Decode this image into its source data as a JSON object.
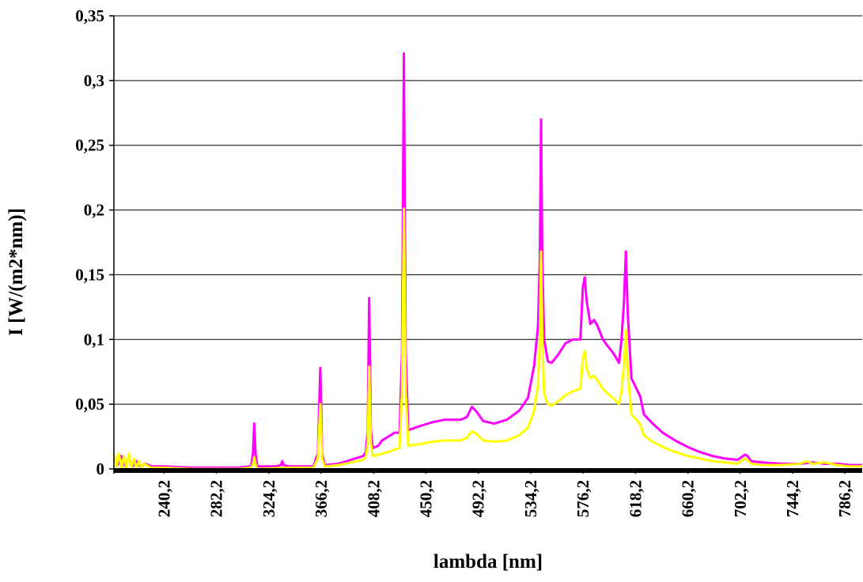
{
  "chart_data": {
    "type": "line",
    "title": "",
    "xlabel": "lambda [nm]",
    "ylabel": "I [W/(m2*nm)]",
    "xlim": [
      200,
      800
    ],
    "ylim": [
      0,
      0.35
    ],
    "yticks": [
      "0",
      "0,05",
      "0,1",
      "0,15",
      "0,2",
      "0,25",
      "0,3",
      "0,35"
    ],
    "ytick_values": [
      0,
      0.05,
      0.1,
      0.15,
      0.2,
      0.25,
      0.3,
      0.35
    ],
    "xticks": [
      "240,2",
      "282,2",
      "324,2",
      "366,2",
      "408,2",
      "450,2",
      "492,2",
      "534,2",
      "576,2",
      "618,2",
      "660,2",
      "702,2",
      "744,2",
      "786,2"
    ],
    "xtick_values": [
      240.2,
      282.2,
      324.2,
      366.2,
      408.2,
      450.2,
      492.2,
      534.2,
      576.2,
      618.2,
      660.2,
      702.2,
      744.2,
      786.2
    ],
    "grid": "horizontal",
    "series": [
      {
        "color": "#ff00ff",
        "points": [
          [
            200,
            0.008
          ],
          [
            203,
            0.003
          ],
          [
            206,
            0.01
          ],
          [
            209,
            0.002
          ],
          [
            212,
            0.008
          ],
          [
            215,
            0.002
          ],
          [
            218,
            0.006
          ],
          [
            221,
            0.002
          ],
          [
            225,
            0.004
          ],
          [
            230,
            0.002
          ],
          [
            240,
            0.002
          ],
          [
            260,
            0.001
          ],
          [
            280,
            0.001
          ],
          [
            300,
            0.001
          ],
          [
            310,
            0.002
          ],
          [
            311.5,
            0.012
          ],
          [
            312.5,
            0.035
          ],
          [
            313.5,
            0.012
          ],
          [
            315,
            0.002
          ],
          [
            330,
            0.002
          ],
          [
            334,
            0.003
          ],
          [
            335,
            0.006
          ],
          [
            336,
            0.003
          ],
          [
            340,
            0.002
          ],
          [
            360,
            0.002
          ],
          [
            363.5,
            0.012
          ],
          [
            365.5,
            0.078
          ],
          [
            367,
            0.012
          ],
          [
            369,
            0.003
          ],
          [
            380,
            0.004
          ],
          [
            390,
            0.007
          ],
          [
            400,
            0.01
          ],
          [
            402,
            0.013
          ],
          [
            403.5,
            0.03
          ],
          [
            404.7,
            0.132
          ],
          [
            406,
            0.03
          ],
          [
            407.5,
            0.016
          ],
          [
            412,
            0.018
          ],
          [
            415,
            0.022
          ],
          [
            420,
            0.025
          ],
          [
            425,
            0.028
          ],
          [
            429,
            0.028
          ],
          [
            431,
            0.09
          ],
          [
            432.5,
            0.321
          ],
          [
            434,
            0.09
          ],
          [
            436,
            0.03
          ],
          [
            445,
            0.033
          ],
          [
            455,
            0.036
          ],
          [
            465,
            0.038
          ],
          [
            478,
            0.038
          ],
          [
            483,
            0.04
          ],
          [
            487,
            0.048
          ],
          [
            491,
            0.044
          ],
          [
            496,
            0.037
          ],
          [
            505,
            0.035
          ],
          [
            515,
            0.038
          ],
          [
            525,
            0.045
          ],
          [
            532,
            0.055
          ],
          [
            537,
            0.08
          ],
          [
            540,
            0.11
          ],
          [
            541.5,
            0.16
          ],
          [
            542.5,
            0.27
          ],
          [
            543.5,
            0.16
          ],
          [
            545,
            0.1
          ],
          [
            548,
            0.083
          ],
          [
            551,
            0.082
          ],
          [
            556,
            0.088
          ],
          [
            562,
            0.097
          ],
          [
            568,
            0.1
          ],
          [
            574,
            0.1
          ],
          [
            576,
            0.14
          ],
          [
            577.5,
            0.148
          ],
          [
            579,
            0.13
          ],
          [
            582,
            0.112
          ],
          [
            585,
            0.115
          ],
          [
            588,
            0.11
          ],
          [
            592,
            0.1
          ],
          [
            595,
            0.096
          ],
          [
            600,
            0.09
          ],
          [
            605,
            0.082
          ],
          [
            607,
            0.1
          ],
          [
            609,
            0.13
          ],
          [
            610.5,
            0.168
          ],
          [
            612,
            0.12
          ],
          [
            615,
            0.07
          ],
          [
            620,
            0.06
          ],
          [
            622,
            0.056
          ],
          [
            625,
            0.042
          ],
          [
            632,
            0.035
          ],
          [
            640,
            0.028
          ],
          [
            650,
            0.022
          ],
          [
            660,
            0.017
          ],
          [
            670,
            0.013
          ],
          [
            680,
            0.01
          ],
          [
            690,
            0.008
          ],
          [
            700,
            0.007
          ],
          [
            706,
            0.011
          ],
          [
            708,
            0.01
          ],
          [
            711,
            0.006
          ],
          [
            720,
            0.005
          ],
          [
            735,
            0.004
          ],
          [
            750,
            0.004
          ],
          [
            760,
            0.005
          ],
          [
            770,
            0.004
          ],
          [
            780,
            0.004
          ],
          [
            790,
            0.003
          ],
          [
            800,
            0.003
          ]
        ]
      },
      {
        "color": "#ffff00",
        "points": [
          [
            200,
            0.012
          ],
          [
            202,
            0.002
          ],
          [
            204,
            0.012
          ],
          [
            206,
            0.0
          ],
          [
            208,
            0.01
          ],
          [
            210,
            0.0
          ],
          [
            212,
            0.012
          ],
          [
            214,
            0.001
          ],
          [
            216,
            0.008
          ],
          [
            218,
            0.001
          ],
          [
            220,
            0.006
          ],
          [
            222,
            0.001
          ],
          [
            224,
            0.004
          ],
          [
            230,
            0.001
          ],
          [
            240,
            0.001
          ],
          [
            260,
            0.0
          ],
          [
            280,
            0.0
          ],
          [
            300,
            0.0
          ],
          [
            310,
            0.001
          ],
          [
            311.5,
            0.004
          ],
          [
            312.5,
            0.009
          ],
          [
            313.5,
            0.004
          ],
          [
            315,
            0.0
          ],
          [
            340,
            0.001
          ],
          [
            360,
            0.001
          ],
          [
            363.5,
            0.008
          ],
          [
            365.5,
            0.05
          ],
          [
            367,
            0.008
          ],
          [
            369,
            0.002
          ],
          [
            380,
            0.003
          ],
          [
            390,
            0.005
          ],
          [
            400,
            0.007
          ],
          [
            402,
            0.009
          ],
          [
            403.5,
            0.02
          ],
          [
            404.7,
            0.079
          ],
          [
            406,
            0.02
          ],
          [
            407.5,
            0.01
          ],
          [
            412,
            0.011
          ],
          [
            420,
            0.013
          ],
          [
            425,
            0.015
          ],
          [
            429,
            0.016
          ],
          [
            431,
            0.06
          ],
          [
            432.5,
            0.201
          ],
          [
            434,
            0.06
          ],
          [
            436,
            0.018
          ],
          [
            445,
            0.019
          ],
          [
            455,
            0.021
          ],
          [
            465,
            0.022
          ],
          [
            478,
            0.022
          ],
          [
            483,
            0.024
          ],
          [
            487,
            0.029
          ],
          [
            491,
            0.027
          ],
          [
            496,
            0.022
          ],
          [
            505,
            0.021
          ],
          [
            515,
            0.022
          ],
          [
            525,
            0.026
          ],
          [
            532,
            0.032
          ],
          [
            537,
            0.045
          ],
          [
            540,
            0.065
          ],
          [
            541.5,
            0.1
          ],
          [
            542.5,
            0.168
          ],
          [
            543.5,
            0.1
          ],
          [
            545,
            0.058
          ],
          [
            548,
            0.05
          ],
          [
            551,
            0.049
          ],
          [
            556,
            0.052
          ],
          [
            562,
            0.057
          ],
          [
            568,
            0.06
          ],
          [
            574,
            0.062
          ],
          [
            576,
            0.085
          ],
          [
            577.5,
            0.091
          ],
          [
            579,
            0.078
          ],
          [
            582,
            0.07
          ],
          [
            585,
            0.072
          ],
          [
            588,
            0.068
          ],
          [
            592,
            0.062
          ],
          [
            595,
            0.059
          ],
          [
            600,
            0.055
          ],
          [
            605,
            0.05
          ],
          [
            607,
            0.06
          ],
          [
            609,
            0.08
          ],
          [
            610.5,
            0.107
          ],
          [
            612,
            0.075
          ],
          [
            615,
            0.042
          ],
          [
            620,
            0.037
          ],
          [
            622,
            0.034
          ],
          [
            625,
            0.026
          ],
          [
            632,
            0.021
          ],
          [
            640,
            0.017
          ],
          [
            650,
            0.013
          ],
          [
            660,
            0.01
          ],
          [
            670,
            0.008
          ],
          [
            680,
            0.006
          ],
          [
            690,
            0.005
          ],
          [
            700,
            0.004
          ],
          [
            706,
            0.008
          ],
          [
            708,
            0.007
          ],
          [
            711,
            0.004
          ],
          [
            720,
            0.003
          ],
          [
            735,
            0.003
          ],
          [
            750,
            0.004
          ],
          [
            756,
            0.006
          ],
          [
            760,
            0.004
          ],
          [
            770,
            0.005
          ],
          [
            780,
            0.003
          ],
          [
            790,
            0.002
          ],
          [
            800,
            0.002
          ]
        ]
      }
    ]
  }
}
